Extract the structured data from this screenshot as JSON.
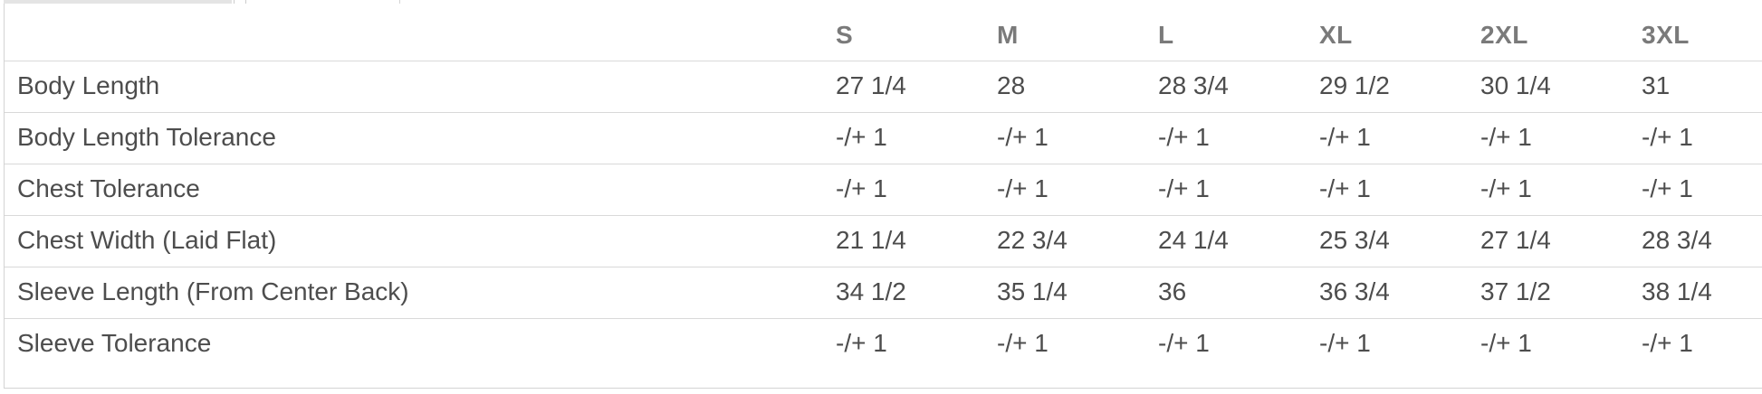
{
  "size_chart": {
    "column_headers": [
      "S",
      "M",
      "L",
      "XL",
      "2XL",
      "3XL"
    ],
    "rows": [
      {
        "label": "Body Length",
        "values": [
          "27 1/4",
          "28",
          "28 3/4",
          "29 1/2",
          "30 1/4",
          "31"
        ]
      },
      {
        "label": "Body Length Tolerance",
        "values": [
          "-/+ 1",
          "-/+ 1",
          "-/+ 1",
          "-/+ 1",
          "-/+ 1",
          "-/+ 1"
        ]
      },
      {
        "label": "Chest Tolerance",
        "values": [
          "-/+ 1",
          "-/+ 1",
          "-/+ 1",
          "-/+ 1",
          "-/+ 1",
          "-/+ 1"
        ]
      },
      {
        "label": "Chest Width (Laid Flat)",
        "values": [
          "21 1/4",
          "22 3/4",
          "24 1/4",
          "25 3/4",
          "27 1/4",
          "28 3/4"
        ]
      },
      {
        "label": "Sleeve Length (From Center Back)",
        "values": [
          "34 1/2",
          "35 1/4",
          "36",
          "36 3/4",
          "37 1/2",
          "38 1/4"
        ]
      },
      {
        "label": "Sleeve Tolerance",
        "values": [
          "-/+ 1",
          "-/+ 1",
          "-/+ 1",
          "-/+ 1",
          "-/+ 1",
          "-/+ 1"
        ]
      }
    ]
  },
  "colors": {
    "header_text": "#7a7a7a",
    "cell_text": "#4d4d4d",
    "separator": "#d9d9d9",
    "panel_border": "#d3d3d3",
    "inactive_tab_fill": "#e4e4e4",
    "background": "#ffffff"
  }
}
